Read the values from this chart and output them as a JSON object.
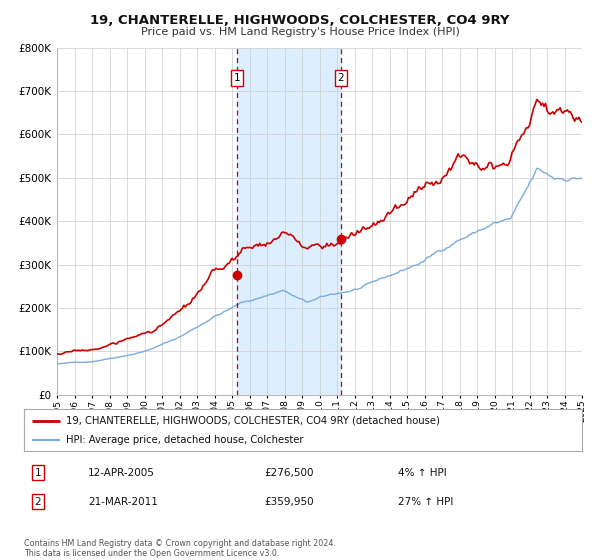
{
  "title": "19, CHANTERELLE, HIGHWOODS, COLCHESTER, CO4 9RY",
  "subtitle": "Price paid vs. HM Land Registry's House Price Index (HPI)",
  "legend_line1": "19, CHANTERELLE, HIGHWOODS, COLCHESTER, CO4 9RY (detached house)",
  "legend_line2": "HPI: Average price, detached house, Colchester",
  "sale1_date": "12-APR-2005",
  "sale1_price": "£276,500",
  "sale1_hpi": "4% ↑ HPI",
  "sale2_date": "21-MAR-2011",
  "sale2_price": "£359,950",
  "sale2_hpi": "27% ↑ HPI",
  "footer": "Contains HM Land Registry data © Crown copyright and database right 2024.\nThis data is licensed under the Open Government Licence v3.0.",
  "sale1_year": 2005.28,
  "sale2_year": 2011.22,
  "sale1_val": 276500,
  "sale2_val": 359950,
  "red_color": "#cc0000",
  "blue_color": "#7aacdc",
  "shade_color": "#ddeeff",
  "grid_color": "#cccccc",
  "bg_color": "#ffffff",
  "ylim": [
    0,
    800000
  ],
  "xlim_start": 1995,
  "xlim_end": 2025
}
